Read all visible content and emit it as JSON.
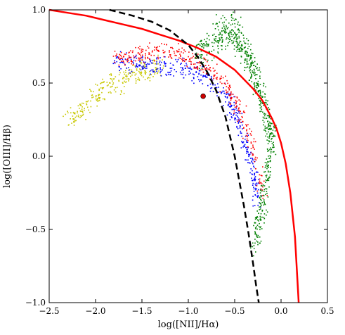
{
  "chart_data": {
    "type": "scatter",
    "title": "",
    "xlabel": "log([NII]/Hα)",
    "ylabel": "log([OIII]/Hβ)",
    "xlim": [
      -2.5,
      0.5
    ],
    "ylim": [
      -1.0,
      1.0
    ],
    "xticks": [
      -2.5,
      -2.0,
      -1.5,
      -1.0,
      -0.5,
      0.0,
      0.5
    ],
    "xtick_labels": [
      "−2.5",
      "−2.0",
      "−1.5",
      "−1.0",
      "−0.5",
      "0.0",
      "0.5"
    ],
    "yticks": [
      -1.0,
      -0.5,
      0.0,
      0.5,
      1.0
    ],
    "ytick_labels": [
      "−1.0",
      "−0.5",
      "0.0",
      "0.5",
      "1.0"
    ],
    "grid": false,
    "legend": "none",
    "curves": [
      {
        "style": "solid",
        "color": "#ff0000",
        "x": [
          -2.5,
          -2.3,
          -2.1,
          -1.9,
          -1.7,
          -1.5,
          -1.3,
          -1.1,
          -0.9,
          -0.7,
          -0.5,
          -0.3,
          -0.2,
          -0.1,
          -0.05,
          0.0,
          0.05,
          0.1,
          0.15,
          0.19
        ],
        "y": [
          1.0,
          0.98,
          0.96,
          0.93,
          0.9,
          0.87,
          0.83,
          0.79,
          0.74,
          0.68,
          0.59,
          0.46,
          0.38,
          0.26,
          0.19,
          0.09,
          -0.05,
          -0.25,
          -0.55,
          -1.0
        ]
      },
      {
        "style": "dashed",
        "color": "#000000",
        "x": [
          -1.85,
          -1.6,
          -1.4,
          -1.2,
          -1.0,
          -0.9,
          -0.8,
          -0.7,
          -0.6,
          -0.5,
          -0.45,
          -0.4,
          -0.35,
          -0.3,
          -0.27,
          -0.24
        ],
        "y": [
          1.0,
          0.96,
          0.92,
          0.86,
          0.76,
          0.68,
          0.58,
          0.45,
          0.27,
          0.0,
          -0.17,
          -0.34,
          -0.53,
          -0.74,
          -0.88,
          -1.0
        ]
      }
    ],
    "series": [
      {
        "color": "#c8c800",
        "trend_x": [
          -2.3,
          -2.1,
          -1.9,
          -1.7,
          -1.5,
          -1.3
        ],
        "trend_y": [
          0.24,
          0.36,
          0.47,
          0.54,
          0.58,
          0.6
        ],
        "spread_y": 0.08,
        "count": 260
      },
      {
        "color": "#0000ff",
        "trend_x": [
          -1.8,
          -1.6,
          -1.4,
          -1.2,
          -1.0,
          -0.8,
          -0.6,
          -0.5,
          -0.4,
          -0.3,
          -0.25
        ],
        "trend_y": [
          0.64,
          0.63,
          0.62,
          0.61,
          0.59,
          0.54,
          0.42,
          0.3,
          0.12,
          -0.1,
          -0.3
        ],
        "spread_y": 0.07,
        "count": 420
      },
      {
        "color": "#ff0000",
        "trend_x": [
          -1.8,
          -1.6,
          -1.4,
          -1.2,
          -1.0,
          -0.8,
          -0.6,
          -0.5,
          -0.4,
          -0.3,
          -0.2
        ],
        "trend_y": [
          0.66,
          0.69,
          0.72,
          0.72,
          0.68,
          0.6,
          0.48,
          0.38,
          0.24,
          0.02,
          -0.25
        ],
        "spread_y": 0.06,
        "count": 360
      },
      {
        "color": "#008000",
        "trend_x": [
          -0.9,
          -0.7,
          -0.55,
          -0.45,
          -0.35,
          -0.25,
          -0.15,
          -0.1,
          -0.2,
          -0.3
        ],
        "trend_y": [
          0.72,
          0.82,
          0.88,
          0.8,
          0.65,
          0.48,
          0.28,
          0.12,
          -0.3,
          -0.6
        ],
        "spread_y": 0.12,
        "count": 700
      }
    ],
    "highlight_point": {
      "x": -0.84,
      "y": 0.41,
      "color": "#cc0000"
    }
  }
}
